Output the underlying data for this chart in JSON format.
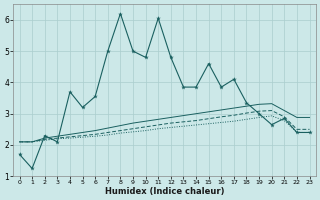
{
  "xlabel": "Humidex (Indice chaleur)",
  "background_color": "#cce8e8",
  "grid_color": "#aacece",
  "line_color": "#1a6060",
  "x": [
    0,
    1,
    2,
    3,
    4,
    5,
    6,
    7,
    8,
    9,
    10,
    11,
    12,
    13,
    14,
    15,
    16,
    17,
    18,
    19,
    20,
    21,
    22,
    23
  ],
  "line1_y": [
    1.7,
    1.25,
    2.3,
    2.1,
    3.7,
    3.2,
    3.55,
    5.0,
    6.2,
    5.0,
    4.8,
    6.05,
    4.8,
    3.85,
    3.85,
    4.6,
    3.85,
    4.1,
    3.35,
    3.0,
    2.65,
    2.85,
    2.4,
    2.4
  ],
  "line2_y": [
    2.1,
    2.1,
    2.15,
    2.2,
    2.22,
    2.25,
    2.28,
    2.32,
    2.38,
    2.42,
    2.46,
    2.52,
    2.56,
    2.6,
    2.64,
    2.68,
    2.72,
    2.76,
    2.82,
    2.88,
    2.93,
    2.78,
    2.4,
    2.4
  ],
  "line3_y": [
    2.1,
    2.1,
    2.18,
    2.22,
    2.26,
    2.3,
    2.34,
    2.4,
    2.46,
    2.52,
    2.58,
    2.64,
    2.7,
    2.74,
    2.78,
    2.84,
    2.9,
    2.95,
    3.02,
    3.08,
    3.1,
    2.9,
    2.5,
    2.5
  ],
  "line4_y": [
    2.1,
    2.1,
    2.22,
    2.28,
    2.34,
    2.4,
    2.46,
    2.54,
    2.62,
    2.7,
    2.76,
    2.82,
    2.88,
    2.94,
    3.0,
    3.06,
    3.12,
    3.18,
    3.24,
    3.3,
    3.32,
    3.1,
    2.88,
    2.88
  ],
  "ylim": [
    1.0,
    6.5
  ],
  "xlim": [
    -0.5,
    23.5
  ],
  "yticks": [
    1,
    2,
    3,
    4,
    5,
    6
  ]
}
